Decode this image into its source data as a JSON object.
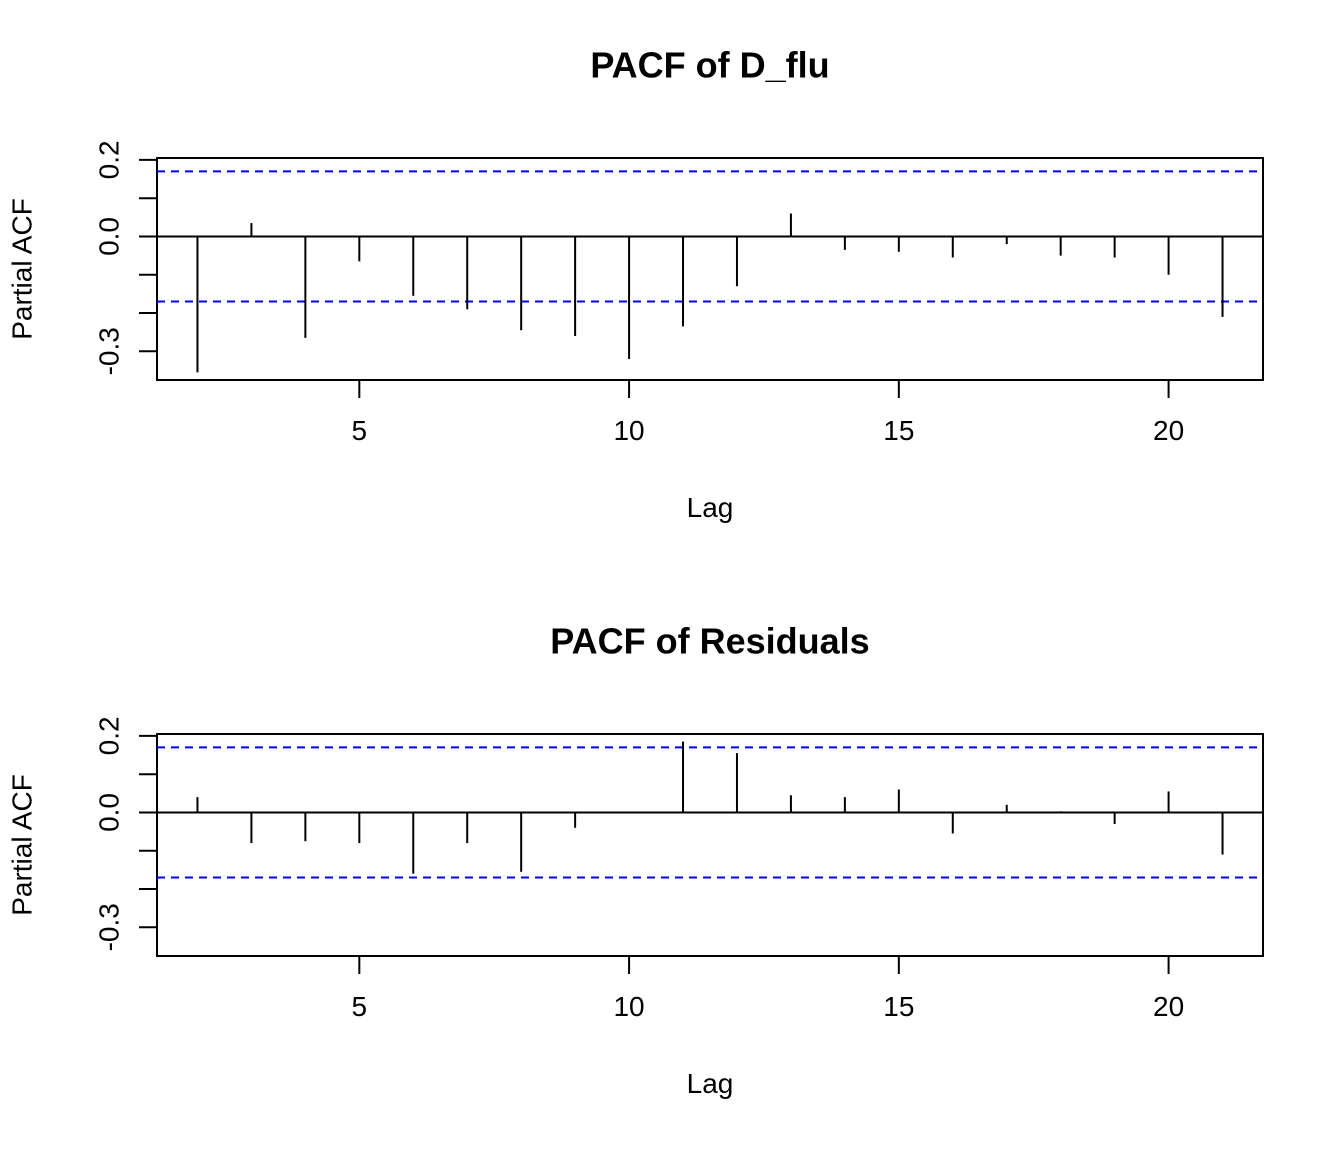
{
  "chart_data": [
    {
      "type": "bar",
      "title": "PACF of D_flu",
      "xlabel": "Lag",
      "ylabel": "Partial ACF",
      "x_ticks": [
        5,
        10,
        15,
        20
      ],
      "y_ticks": [
        -0.3,
        0.0,
        0.2
      ],
      "y_tick_labels": [
        "-0.3",
        "0.0",
        "0.2"
      ],
      "xlim": [
        1.25,
        21.75
      ],
      "ylim": [
        -0.375,
        0.205
      ],
      "ci": 0.17,
      "ci_color": "#0000ff",
      "lags": [
        2,
        3,
        4,
        5,
        6,
        7,
        8,
        9,
        10,
        11,
        12,
        13,
        14,
        15,
        16,
        17,
        18,
        19,
        20,
        21
      ],
      "values": [
        -0.355,
        0.035,
        -0.265,
        -0.065,
        -0.155,
        -0.19,
        -0.245,
        -0.26,
        -0.32,
        -0.235,
        -0.13,
        0.06,
        -0.035,
        -0.04,
        -0.055,
        -0.02,
        -0.05,
        -0.055,
        -0.1,
        -0.21
      ]
    },
    {
      "type": "bar",
      "title": "PACF of Residuals",
      "xlabel": "Lag",
      "ylabel": "Partial ACF",
      "x_ticks": [
        5,
        10,
        15,
        20
      ],
      "y_ticks": [
        -0.3,
        0.0,
        0.2
      ],
      "y_tick_labels": [
        "-0.3",
        "0.0",
        "0.2"
      ],
      "xlim": [
        1.25,
        21.75
      ],
      "ylim": [
        -0.375,
        0.205
      ],
      "ci": 0.17,
      "ci_color": "#0000ff",
      "lags": [
        2,
        3,
        4,
        5,
        6,
        7,
        8,
        9,
        10,
        11,
        12,
        13,
        14,
        15,
        16,
        17,
        18,
        19,
        20,
        21
      ],
      "values": [
        0.04,
        -0.08,
        -0.075,
        -0.08,
        -0.16,
        -0.08,
        -0.155,
        -0.04,
        0.002,
        0.185,
        0.155,
        0.045,
        0.04,
        0.06,
        -0.055,
        0.02,
        0.003,
        -0.03,
        0.055,
        -0.11
      ]
    }
  ]
}
